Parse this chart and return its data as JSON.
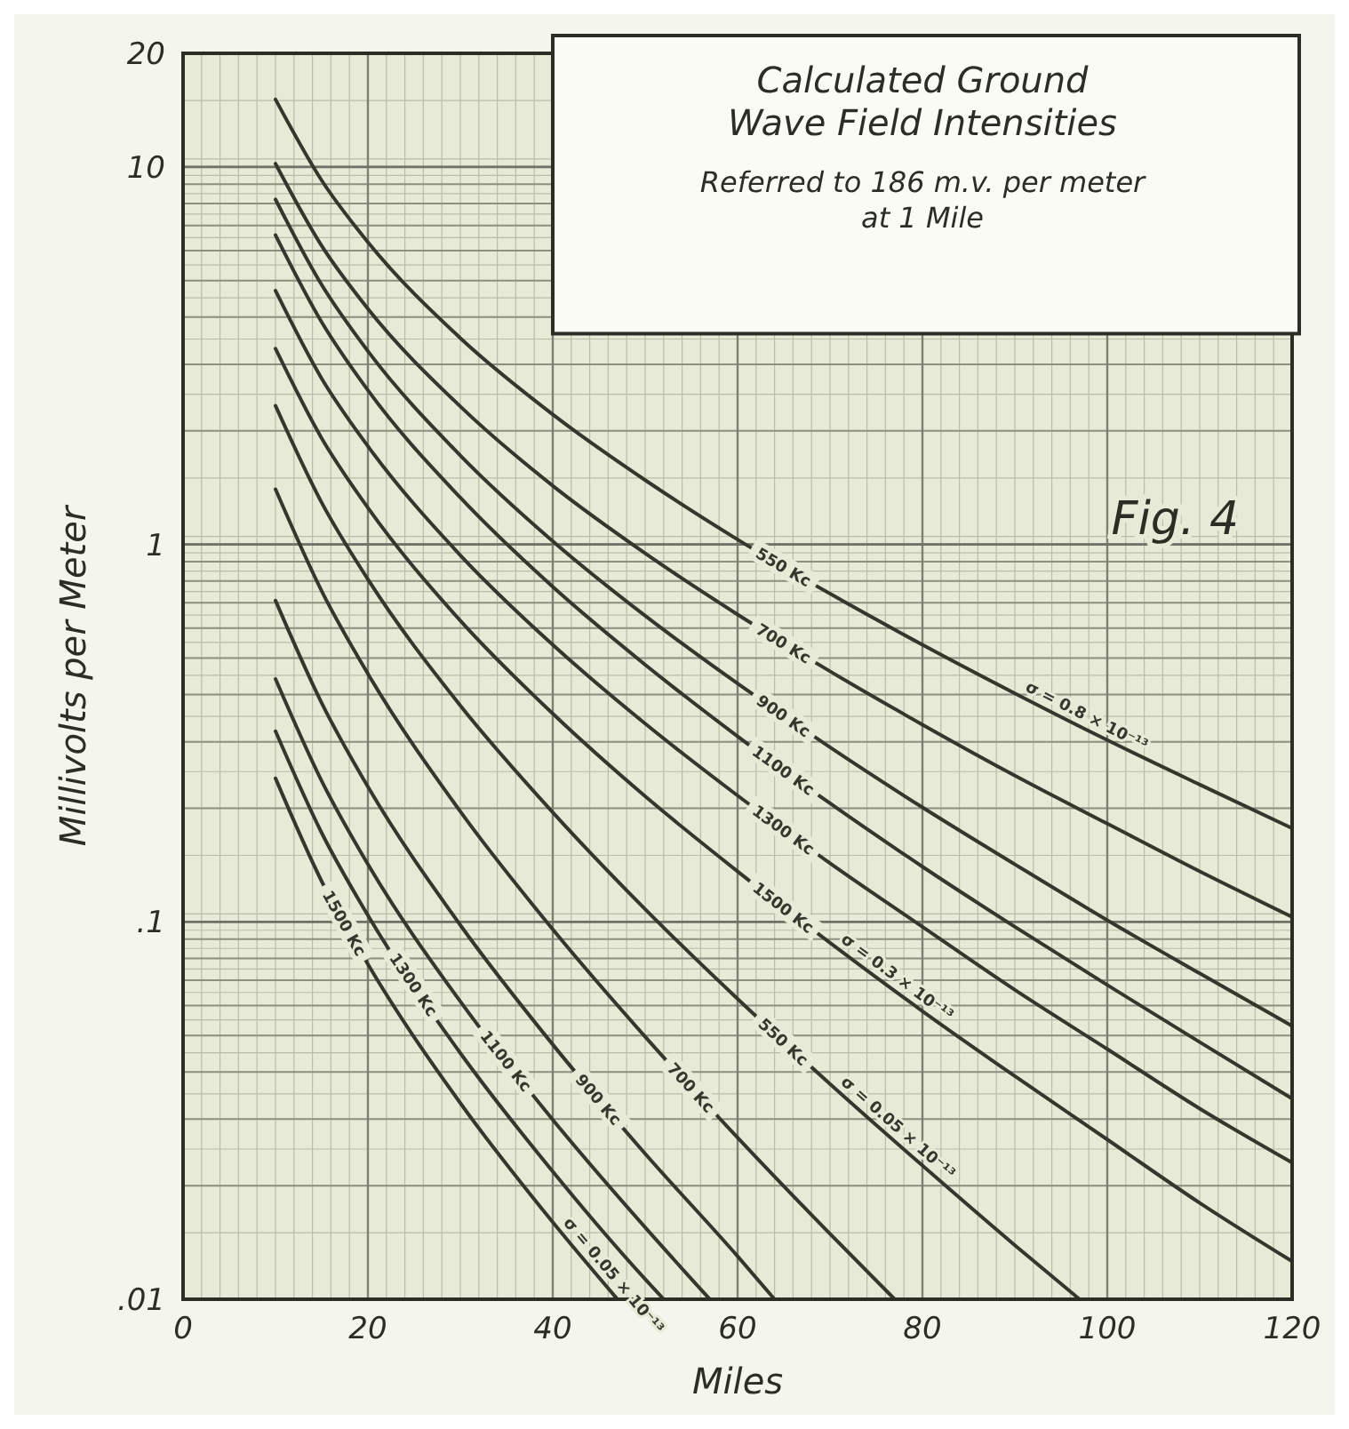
{
  "chart_data": {
    "type": "line",
    "title": "Calculated Ground Wave Field Intensities",
    "subtitle": "Referred to 186 m.v. per meter at 1 Mile",
    "xlabel": "Miles",
    "ylabel": "Millivolts per Meter",
    "log": "y",
    "grid": true,
    "marker": "none",
    "line_style": "solid",
    "xlim": [
      0,
      120
    ],
    "xticks": [
      0,
      20,
      40,
      60,
      80,
      100,
      120
    ],
    "ylim": [
      0.01,
      20
    ],
    "yticks": [
      {
        "value": 0.01,
        "label": ".01"
      },
      {
        "value": 0.1,
        "label": ".1"
      },
      1,
      10,
      20
    ],
    "annotations": [
      "Fig. 4",
      {
        "text": "σ = 0.8 × 10⁻¹³",
        "x": 90,
        "y": 0.403
      },
      {
        "text": "σ = 0.3 × 10⁻¹³",
        "x": 70,
        "y": 0.088
      },
      {
        "text": "σ = 0.05 × 10⁻¹³",
        "x": 70,
        "y": 0.0372
      },
      {
        "text": "σ = 0.05 × 10⁻¹³",
        "x": 40,
        "y": 0.016
      }
    ],
    "series": [
      {
        "name": "550 Kc",
        "color": "#34382c",
        "x": [
          10,
          15,
          20,
          30,
          40,
          50,
          60,
          70,
          80,
          90,
          100,
          110,
          120
        ],
        "values": [
          15.1,
          9.21,
          6.32,
          3.52,
          2.21,
          1.48,
          1.03,
          0.74,
          0.542,
          0.403,
          0.303,
          0.231,
          0.177
        ]
      },
      {
        "name": "700 Kc",
        "color": "#34382c",
        "x": [
          10,
          15,
          20,
          30,
          40,
          50,
          60,
          70,
          80,
          90,
          100,
          110,
          120
        ],
        "values": [
          10.2,
          6.18,
          4.21,
          2.32,
          1.43,
          0.947,
          0.652,
          0.461,
          0.333,
          0.244,
          0.182,
          0.136,
          0.103
        ]
      },
      {
        "name": "900 Kc",
        "color": "#34382c",
        "x": [
          10,
          15,
          20,
          30,
          40,
          50,
          60,
          70,
          80,
          90,
          100,
          110,
          120
        ],
        "values": [
          8.2,
          4.87,
          3.25,
          1.72,
          1.02,
          0.647,
          0.428,
          0.29,
          0.201,
          0.142,
          0.101,
          0.073,
          0.053
        ]
      },
      {
        "name": "1100 Kc",
        "color": "#34382c",
        "x": [
          10,
          15,
          20,
          30,
          40,
          50,
          60,
          70,
          80,
          90,
          100,
          110,
          120
        ],
        "values": [
          6.6,
          3.88,
          2.56,
          1.33,
          0.772,
          0.48,
          0.31,
          0.206,
          0.14,
          0.097,
          0.068,
          0.048,
          0.034
        ]
      },
      {
        "name": "1300 Kc",
        "color": "#34382c",
        "x": [
          10,
          15,
          20,
          30,
          40,
          50,
          60,
          70,
          80,
          90,
          100,
          110,
          120
        ],
        "values": [
          4.7,
          2.75,
          1.82,
          0.936,
          0.542,
          0.335,
          0.216,
          0.143,
          0.097,
          0.066,
          0.046,
          0.032,
          0.023
        ]
      },
      {
        "name": "1500 Kc",
        "color": "#34382c",
        "x": [
          10,
          15,
          20,
          30,
          40,
          50,
          60,
          70,
          80,
          90,
          100,
          110,
          120
        ],
        "values": [
          3.3,
          1.91,
          1.25,
          0.628,
          0.356,
          0.215,
          0.136,
          0.088,
          0.058,
          0.039,
          0.0265,
          0.018,
          0.0126
        ]
      },
      {
        "name": "550 Kc",
        "color": "#34382c",
        "x": [
          10,
          15,
          20,
          30,
          40,
          50,
          60,
          70,
          80,
          90,
          97
        ],
        "values": [
          2.33,
          1.29,
          0.808,
          0.374,
          0.195,
          0.108,
          0.0625,
          0.0372,
          0.0226,
          0.0139,
          0.01
        ]
      },
      {
        "name": "700 Kc",
        "color": "#34382c",
        "x": [
          10,
          15,
          20,
          30,
          40,
          50,
          60,
          70,
          77
        ],
        "values": [
          1.4,
          0.752,
          0.454,
          0.196,
          0.0955,
          0.0496,
          0.0268,
          0.0149,
          0.01
        ]
      },
      {
        "name": "900 Kc",
        "color": "#34382c",
        "x": [
          10,
          15,
          20,
          30,
          40,
          50,
          60,
          64
        ],
        "values": [
          0.71,
          0.38,
          0.228,
          0.098,
          0.0473,
          0.0243,
          0.013,
          0.01
        ]
      },
      {
        "name": "1100 Kc",
        "color": "#34382c",
        "x": [
          10,
          15,
          20,
          30,
          40,
          50,
          57
        ],
        "values": [
          0.44,
          0.236,
          0.142,
          0.0615,
          0.0299,
          0.0155,
          0.01
        ]
      },
      {
        "name": "1300 Kc",
        "color": "#34382c",
        "x": [
          10,
          15,
          20,
          30,
          40,
          50,
          52
        ],
        "values": [
          0.32,
          0.172,
          0.104,
          0.0449,
          0.0218,
          0.0113,
          0.01
        ]
      },
      {
        "name": "1500 Kc",
        "color": "#34382c",
        "x": [
          10,
          15,
          20,
          30,
          40,
          47
        ],
        "values": [
          0.24,
          0.128,
          0.0772,
          0.0331,
          0.016,
          0.01
        ]
      }
    ]
  }
}
